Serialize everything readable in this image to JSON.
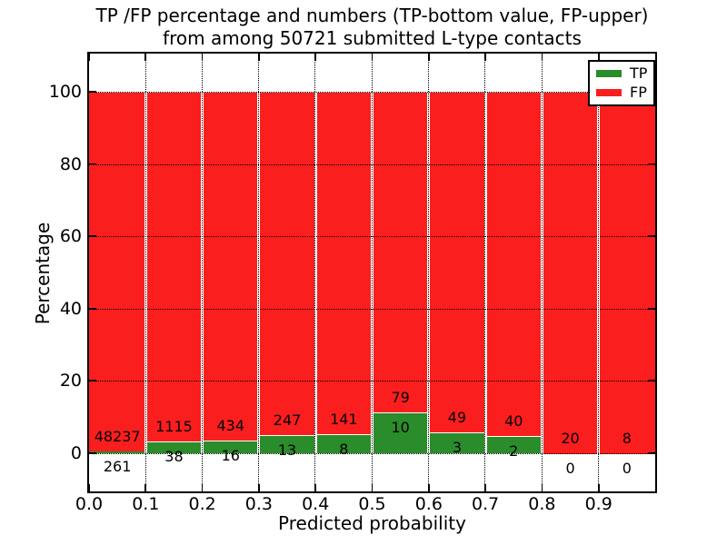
{
  "title": {
    "line1": "TP /FP percentage and numbers (TP-bottom value, FP-upper)",
    "line2": "from among 50721 submitted L-type contacts"
  },
  "y_axis": {
    "label": "Percentage",
    "ticks": [
      0,
      20,
      40,
      60,
      80,
      100
    ]
  },
  "x_axis": {
    "label": "Predicted probability",
    "ticks": [
      "0.0",
      "0.1",
      "0.2",
      "0.3",
      "0.4",
      "0.5",
      "0.6",
      "0.7",
      "0.8",
      "0.9"
    ]
  },
  "legend": {
    "entries": [
      {
        "label": "TP",
        "color": "#2a8c2a"
      },
      {
        "label": "FP",
        "color": "#fb1e1e"
      }
    ]
  },
  "chart_data": {
    "type": "bar",
    "stacked": true,
    "normalized_to_percent": true,
    "title": "TP /FP percentage and numbers (TP-bottom value, FP-upper) from among 50721 submitted L-type contacts",
    "xlabel": "Predicted probability",
    "ylabel": "Percentage",
    "ylim": [
      -10.5,
      110.5
    ],
    "yticks": [
      0,
      20,
      40,
      60,
      80,
      100
    ],
    "grid": true,
    "legend_position": "upper right",
    "total_submitted": 50721,
    "bin_edges": [
      0.0,
      0.1,
      0.2,
      0.3,
      0.4,
      0.5,
      0.6,
      0.7,
      0.8,
      0.9,
      1.0
    ],
    "categories": [
      "0.0-0.1",
      "0.1-0.2",
      "0.2-0.3",
      "0.3-0.4",
      "0.4-0.5",
      "0.5-0.6",
      "0.6-0.7",
      "0.7-0.8",
      "0.8-0.9",
      "0.9-1.0"
    ],
    "series": [
      {
        "name": "TP",
        "color": "#2a8c2a",
        "counts": [
          261,
          38,
          16,
          13,
          8,
          10,
          3,
          2,
          0,
          0
        ]
      },
      {
        "name": "FP",
        "color": "#fb1e1e",
        "counts": [
          48237,
          1115,
          434,
          247,
          141,
          79,
          49,
          40,
          20,
          8
        ]
      }
    ],
    "tp_percent_by_bin": [
      0.54,
      3.3,
      3.56,
      5.0,
      5.37,
      11.24,
      5.77,
      4.76,
      0.0,
      0.0
    ],
    "fp_percent_by_bin": [
      99.46,
      96.7,
      96.44,
      95.0,
      94.63,
      88.76,
      94.23,
      95.24,
      100.0,
      100.0
    ]
  }
}
